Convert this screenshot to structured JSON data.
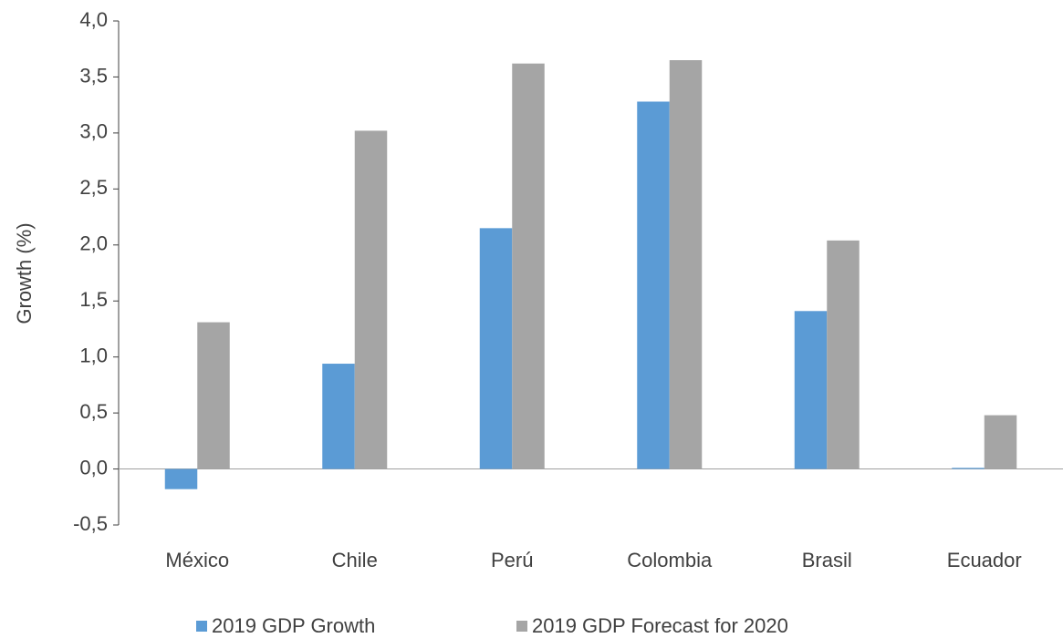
{
  "chart_data": {
    "type": "bar",
    "y_label": "Growth (%)",
    "categories": [
      "México",
      "Chile",
      "Perú",
      "Colombia",
      "Brasil",
      "Ecuador"
    ],
    "series": [
      {
        "name": "2019 GDP Growth",
        "color": "#5b9bd5",
        "values": [
          -0.18,
          0.94,
          2.15,
          3.28,
          1.41,
          0.01
        ]
      },
      {
        "name": "2019 GDP Forecast for 2020",
        "color": "#a5a5a5",
        "values": [
          1.31,
          3.02,
          3.62,
          3.65,
          2.04,
          0.48
        ]
      }
    ],
    "ylim": [
      -0.5,
      4.0
    ],
    "yticks": [
      {
        "value": -0.5,
        "label": "-0,5"
      },
      {
        "value": 0,
        "label": "0,0"
      },
      {
        "value": 0.5,
        "label": "0,5"
      },
      {
        "value": 1,
        "label": "1,0"
      },
      {
        "value": 1.5,
        "label": "1,5"
      },
      {
        "value": 2,
        "label": "2,0"
      },
      {
        "value": 2.5,
        "label": "2,5"
      },
      {
        "value": 3,
        "label": "3,0"
      },
      {
        "value": 3.5,
        "label": "3,5"
      },
      {
        "value": 4,
        "label": "4,0"
      }
    ],
    "grid": false,
    "legend": "bottom"
  }
}
